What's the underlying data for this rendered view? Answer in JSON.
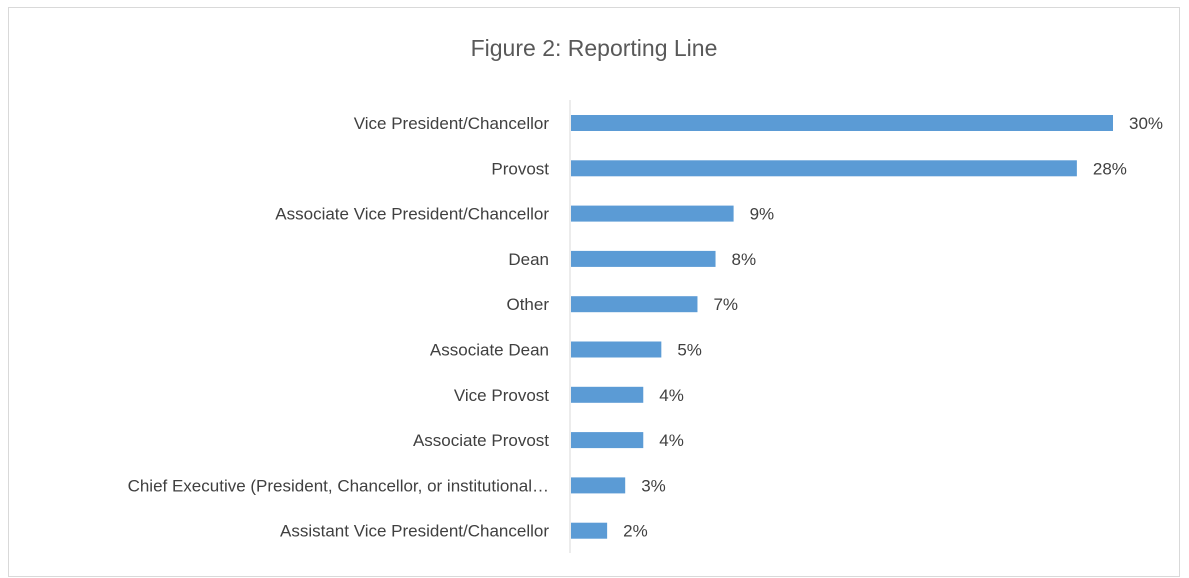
{
  "chart_data": {
    "type": "bar",
    "orientation": "horizontal",
    "title": "Figure 2: Reporting Line",
    "xlabel": "",
    "ylabel": "",
    "grid": false,
    "legend": "none",
    "categories": [
      "Vice President/Chancellor",
      "Provost",
      "Associate Vice President/Chancellor",
      "Dean",
      "Other",
      "Associate Dean",
      "Vice Provost",
      "Associate Provost",
      "Chief Executive (President, Chancellor, or institutional…",
      "Assistant Vice President/Chancellor"
    ],
    "values": [
      30,
      28,
      9,
      8,
      7,
      5,
      4,
      4,
      3,
      2
    ],
    "data_labels": [
      "30%",
      "28%",
      "9%",
      "8%",
      "7%",
      "5%",
      "4%",
      "4%",
      "3%",
      "2%"
    ],
    "xlim": [
      0,
      30
    ],
    "bar_color": "#5b9bd5"
  }
}
